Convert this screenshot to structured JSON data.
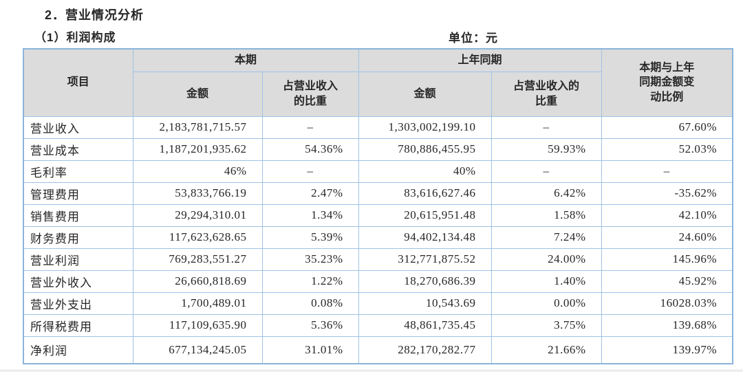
{
  "section_title": "2．营业情况分析",
  "subsection_title": "（1）利润构成",
  "unit_label": "单位：元",
  "colors": {
    "border": "#9dc3e6",
    "border_outer": "#8ab4dc",
    "header_bg": "#dcdcdc",
    "text": "#262626"
  },
  "table": {
    "headers": {
      "item": "项目",
      "current_period": "本期",
      "prior_period": "上年同期",
      "amount": "金额",
      "pct_current": "占营业收入\n的比重",
      "pct_prior": "占营业收入的\n比重",
      "change_ratio": "本期与上年\n同期金额变\n动比例"
    },
    "rows": [
      {
        "item": "营业收入",
        "amount_current": "2,183,781,715.57",
        "pct_current": "–",
        "amount_prior": "1,303,002,199.10",
        "pct_prior": "–",
        "change": "67.60%"
      },
      {
        "item": "营业成本",
        "amount_current": "1,187,201,935.62",
        "pct_current": "54.36%",
        "amount_prior": "780,886,455.95",
        "pct_prior": "59.93%",
        "change": "52.03%"
      },
      {
        "item": "毛利率",
        "amount_current": "46%",
        "pct_current": "–",
        "amount_prior": "40%",
        "pct_prior": "–",
        "change": "–"
      },
      {
        "item": "管理费用",
        "amount_current": "53,833,766.19",
        "pct_current": "2.47%",
        "amount_prior": "83,616,627.46",
        "pct_prior": "6.42%",
        "change": "-35.62%"
      },
      {
        "item": "销售费用",
        "amount_current": "29,294,310.01",
        "pct_current": "1.34%",
        "amount_prior": "20,615,951.48",
        "pct_prior": "1.58%",
        "change": "42.10%"
      },
      {
        "item": "财务费用",
        "amount_current": "117,623,628.65",
        "pct_current": "5.39%",
        "amount_prior": "94,402,134.48",
        "pct_prior": "7.24%",
        "change": "24.60%"
      },
      {
        "item": "营业利润",
        "amount_current": "769,283,551.27",
        "pct_current": "35.23%",
        "amount_prior": "312,771,875.52",
        "pct_prior": "24.00%",
        "change": "145.96%"
      },
      {
        "item": "营业外收入",
        "amount_current": "26,660,818.69",
        "pct_current": "1.22%",
        "amount_prior": "18,270,686.39",
        "pct_prior": "1.40%",
        "change": "45.92%"
      },
      {
        "item": "营业外支出",
        "amount_current": "1,700,489.01",
        "pct_current": "0.08%",
        "amount_prior": "10,543.69",
        "pct_prior": "0.00%",
        "change": "16028.03%"
      },
      {
        "item": "所得税费用",
        "amount_current": "117,109,635.90",
        "pct_current": "5.36%",
        "amount_prior": "48,861,735.45",
        "pct_prior": "3.75%",
        "change": "139.68%"
      },
      {
        "item": "净利润",
        "amount_current": "677,134,245.05",
        "pct_current": "31.01%",
        "amount_prior": "282,170,282.77",
        "pct_prior": "21.66%",
        "change": "139.97%"
      }
    ]
  }
}
